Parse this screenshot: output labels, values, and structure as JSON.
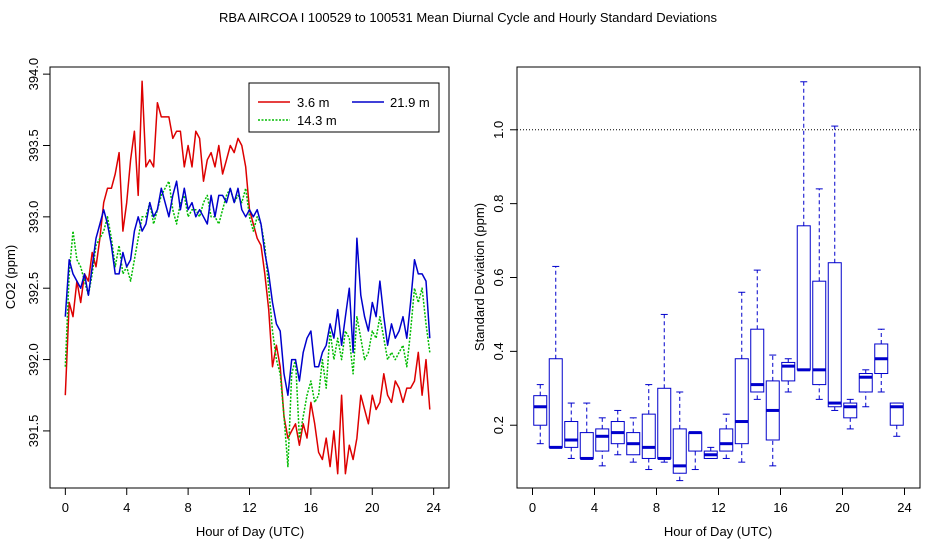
{
  "title": "RBA   AIRCOA I   100529 to 100531   Mean Diurnal Cycle and Hourly Standard Deviations",
  "chart_data": [
    {
      "type": "line",
      "xlabel": "Hour of Day (UTC)",
      "ylabel": "CO2 (ppm)",
      "xlim": [
        -1,
        25
      ],
      "ylim": [
        391.1,
        394.05
      ],
      "xticks": [
        0,
        4,
        8,
        12,
        16,
        20,
        24
      ],
      "yticks": [
        391.5,
        392.0,
        392.5,
        393.0,
        393.5,
        394.0
      ],
      "ytick_labels": [
        "391.5",
        "392.0",
        "392.5",
        "393.0",
        "393.5",
        "394.0"
      ],
      "legend_position": "top-right",
      "x": [
        0.0,
        0.25,
        0.5,
        0.75,
        1.0,
        1.25,
        1.5,
        1.75,
        2.0,
        2.25,
        2.5,
        2.75,
        3.0,
        3.25,
        3.5,
        3.75,
        4.0,
        4.25,
        4.5,
        4.75,
        5.0,
        5.25,
        5.5,
        5.75,
        6.0,
        6.25,
        6.5,
        6.75,
        7.0,
        7.25,
        7.5,
        7.75,
        8.0,
        8.25,
        8.5,
        8.75,
        9.0,
        9.25,
        9.5,
        9.75,
        10.0,
        10.25,
        10.5,
        10.75,
        11.0,
        11.25,
        11.5,
        11.75,
        12.0,
        12.25,
        12.5,
        12.75,
        13.0,
        13.25,
        13.5,
        13.75,
        14.0,
        14.25,
        14.5,
        14.75,
        15.0,
        15.25,
        15.5,
        15.75,
        16.0,
        16.25,
        16.5,
        16.75,
        17.0,
        17.25,
        17.5,
        17.75,
        18.0,
        18.25,
        18.5,
        18.75,
        19.0,
        19.25,
        19.5,
        19.75,
        20.0,
        20.25,
        20.5,
        20.75,
        21.0,
        21.25,
        21.5,
        21.75,
        22.0,
        22.25,
        22.5,
        22.75,
        23.0,
        23.25,
        23.5,
        23.75
      ],
      "series": [
        {
          "name": "3.6 m",
          "color": "#dd0000",
          "dash": "solid",
          "values": [
            391.75,
            392.4,
            392.3,
            392.55,
            392.4,
            392.6,
            392.55,
            392.75,
            392.65,
            392.85,
            393.1,
            393.2,
            393.2,
            393.3,
            393.45,
            392.9,
            393.1,
            393.4,
            393.6,
            393.15,
            393.95,
            393.35,
            393.4,
            393.35,
            393.8,
            393.7,
            393.7,
            393.7,
            393.55,
            393.6,
            393.6,
            393.35,
            393.5,
            393.35,
            393.6,
            393.55,
            393.25,
            393.4,
            393.45,
            393.35,
            393.5,
            393.3,
            393.4,
            393.5,
            393.45,
            393.55,
            393.5,
            393.35,
            393.05,
            392.95,
            392.85,
            392.8,
            392.6,
            392.35,
            391.95,
            392.1,
            391.95,
            391.6,
            391.45,
            391.5,
            391.55,
            391.4,
            391.55,
            391.45,
            391.7,
            391.55,
            391.35,
            391.3,
            391.45,
            391.25,
            391.5,
            391.2,
            391.75,
            391.2,
            391.4,
            391.3,
            391.45,
            391.75,
            391.65,
            391.55,
            391.75,
            391.65,
            391.7,
            391.9,
            391.75,
            391.7,
            391.85,
            391.8,
            391.7,
            391.8,
            391.8,
            391.85,
            392.05,
            391.75,
            392.0,
            391.65
          ]
        },
        {
          "name": "14.3 m",
          "color": "#00bb00",
          "dash": "dotted",
          "values": [
            391.95,
            392.6,
            392.9,
            392.7,
            392.65,
            392.55,
            392.45,
            392.6,
            392.8,
            392.85,
            392.9,
            393.0,
            392.85,
            392.65,
            392.8,
            392.6,
            392.65,
            392.55,
            392.7,
            392.85,
            393.0,
            393.0,
            393.1,
            392.95,
            393.05,
            393.15,
            393.2,
            393.25,
            393.05,
            392.95,
            393.1,
            393.15,
            393.0,
            393.05,
            393.05,
            393.0,
            393.1,
            393.15,
            393.0,
            393.0,
            392.95,
            393.05,
            393.15,
            393.2,
            393.1,
            393.15,
            393.1,
            393.2,
            393.0,
            392.9,
            393.0,
            392.95,
            392.8,
            392.5,
            392.2,
            392.0,
            391.9,
            391.6,
            391.25,
            391.9,
            392.0,
            391.45,
            391.6,
            391.75,
            391.85,
            391.7,
            391.75,
            392.0,
            391.8,
            392.2,
            392.0,
            392.15,
            392.0,
            392.2,
            392.15,
            391.9,
            392.3,
            392.15,
            392.0,
            392.05,
            392.2,
            392.15,
            392.3,
            392.15,
            392.0,
            392.05,
            392.0,
            392.05,
            392.1,
            391.95,
            392.2,
            392.5,
            392.4,
            392.5,
            392.25,
            392.05
          ]
        },
        {
          "name": "21.9 m",
          "color": "#0000cc",
          "dash": "solid",
          "values": [
            392.3,
            392.7,
            392.6,
            392.55,
            392.5,
            392.6,
            392.45,
            392.65,
            392.85,
            392.95,
            393.05,
            392.95,
            392.8,
            392.6,
            392.6,
            392.75,
            392.65,
            392.7,
            392.9,
            393.0,
            392.9,
            392.95,
            393.1,
            393.0,
            393.05,
            393.2,
            393.1,
            393.0,
            393.15,
            393.25,
            393.05,
            393.2,
            393.05,
            393.1,
            393.0,
            393.05,
            393.0,
            392.95,
            393.15,
            393.0,
            393.15,
            393.15,
            393.1,
            393.2,
            393.1,
            393.2,
            393.05,
            393.0,
            393.05,
            393.0,
            393.05,
            392.95,
            392.75,
            392.6,
            392.4,
            392.25,
            392.2,
            391.9,
            391.75,
            392.0,
            392.0,
            391.85,
            392.05,
            392.15,
            392.2,
            391.95,
            391.95,
            392.05,
            392.1,
            392.25,
            392.15,
            392.35,
            392.1,
            392.3,
            392.5,
            392.05,
            392.85,
            392.45,
            392.3,
            392.2,
            392.4,
            392.3,
            392.55,
            392.3,
            392.1,
            392.25,
            392.15,
            392.2,
            392.3,
            392.15,
            392.4,
            392.7,
            392.6,
            392.6,
            392.55,
            392.15
          ]
        }
      ]
    },
    {
      "type": "box",
      "xlabel": "Hour of Day (UTC)",
      "ylabel": "Standard Deviation (ppm)",
      "xlim": [
        -1,
        25
      ],
      "ylim": [
        0.03,
        1.17
      ],
      "xticks": [
        0,
        4,
        8,
        12,
        16,
        20,
        24
      ],
      "yticks": [
        0.2,
        0.4,
        0.6,
        0.8,
        1.0
      ],
      "ytick_labels": [
        "0.2",
        "0.4",
        "0.6",
        "0.8",
        "1.0"
      ],
      "reference_line": 1.0,
      "box_color": "#0000cc",
      "boxes": [
        {
          "x": 0.5,
          "min": 0.15,
          "q1": 0.2,
          "median": 0.25,
          "q3": 0.28,
          "max": 0.31
        },
        {
          "x": 1.5,
          "min": 0.14,
          "q1": 0.14,
          "median": 0.14,
          "q3": 0.38,
          "max": 0.63
        },
        {
          "x": 2.5,
          "min": 0.11,
          "q1": 0.14,
          "median": 0.16,
          "q3": 0.21,
          "max": 0.26
        },
        {
          "x": 3.5,
          "min": 0.11,
          "q1": 0.11,
          "median": 0.11,
          "q3": 0.18,
          "max": 0.26
        },
        {
          "x": 4.5,
          "min": 0.09,
          "q1": 0.13,
          "median": 0.17,
          "q3": 0.19,
          "max": 0.22
        },
        {
          "x": 5.5,
          "min": 0.12,
          "q1": 0.15,
          "median": 0.18,
          "q3": 0.21,
          "max": 0.24
        },
        {
          "x": 6.5,
          "min": 0.1,
          "q1": 0.12,
          "median": 0.15,
          "q3": 0.18,
          "max": 0.22
        },
        {
          "x": 7.5,
          "min": 0.08,
          "q1": 0.11,
          "median": 0.14,
          "q3": 0.23,
          "max": 0.31
        },
        {
          "x": 8.5,
          "min": 0.1,
          "q1": 0.11,
          "median": 0.11,
          "q3": 0.3,
          "max": 0.5
        },
        {
          "x": 9.5,
          "min": 0.05,
          "q1": 0.07,
          "median": 0.09,
          "q3": 0.19,
          "max": 0.29
        },
        {
          "x": 10.5,
          "min": 0.08,
          "q1": 0.13,
          "median": 0.18,
          "q3": 0.18,
          "max": 0.18
        },
        {
          "x": 11.5,
          "min": 0.11,
          "q1": 0.11,
          "median": 0.12,
          "q3": 0.13,
          "max": 0.14
        },
        {
          "x": 12.5,
          "min": 0.11,
          "q1": 0.13,
          "median": 0.15,
          "q3": 0.19,
          "max": 0.23
        },
        {
          "x": 13.5,
          "min": 0.1,
          "q1": 0.15,
          "median": 0.21,
          "q3": 0.38,
          "max": 0.56
        },
        {
          "x": 14.5,
          "min": 0.27,
          "q1": 0.29,
          "median": 0.31,
          "q3": 0.46,
          "max": 0.62
        },
        {
          "x": 15.5,
          "min": 0.09,
          "q1": 0.16,
          "median": 0.24,
          "q3": 0.32,
          "max": 0.39
        },
        {
          "x": 16.5,
          "min": 0.29,
          "q1": 0.32,
          "median": 0.36,
          "q3": 0.37,
          "max": 0.38
        },
        {
          "x": 17.5,
          "min": 0.35,
          "q1": 0.35,
          "median": 0.35,
          "q3": 0.74,
          "max": 1.13
        },
        {
          "x": 18.5,
          "min": 0.27,
          "q1": 0.31,
          "median": 0.35,
          "q3": 0.59,
          "max": 0.84
        },
        {
          "x": 19.5,
          "min": 0.24,
          "q1": 0.25,
          "median": 0.26,
          "q3": 0.64,
          "max": 1.01
        },
        {
          "x": 20.5,
          "min": 0.19,
          "q1": 0.22,
          "median": 0.25,
          "q3": 0.26,
          "max": 0.27
        },
        {
          "x": 21.5,
          "min": 0.25,
          "q1": 0.29,
          "median": 0.33,
          "q3": 0.34,
          "max": 0.35
        },
        {
          "x": 22.5,
          "min": 0.29,
          "q1": 0.34,
          "median": 0.38,
          "q3": 0.42,
          "max": 0.46
        },
        {
          "x": 23.5,
          "min": 0.17,
          "q1": 0.2,
          "median": 0.25,
          "q3": 0.26,
          "max": 0.26
        }
      ]
    }
  ]
}
